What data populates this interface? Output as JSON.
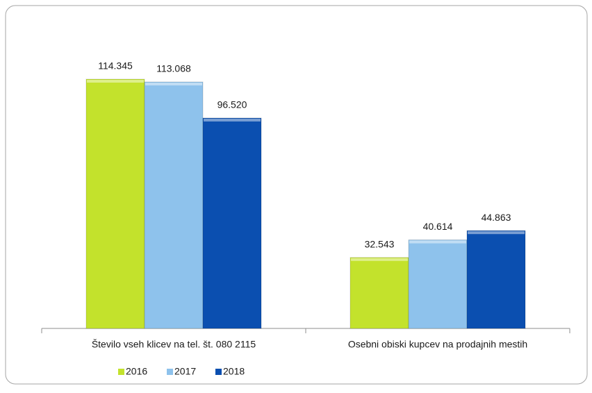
{
  "chart_data": {
    "type": "bar",
    "categories": [
      "Število vseh klicev na tel. št. 080 2115",
      "Osebni obiski kupcev na prodajnih mestih"
    ],
    "series": [
      {
        "name": "2016",
        "color": "#c3e22c",
        "values": [
          114345,
          32543
        ],
        "value_labels": [
          "114.345",
          "32.543"
        ]
      },
      {
        "name": "2017",
        "color": "#8ec2ec",
        "values": [
          113068,
          40614
        ],
        "value_labels": [
          "113.068",
          "40.614"
        ]
      },
      {
        "name": "2018",
        "color": "#0b4fb0",
        "values": [
          96520,
          44863
        ],
        "value_labels": [
          "96.520",
          "44.863"
        ]
      }
    ],
    "legend": "bottom"
  }
}
